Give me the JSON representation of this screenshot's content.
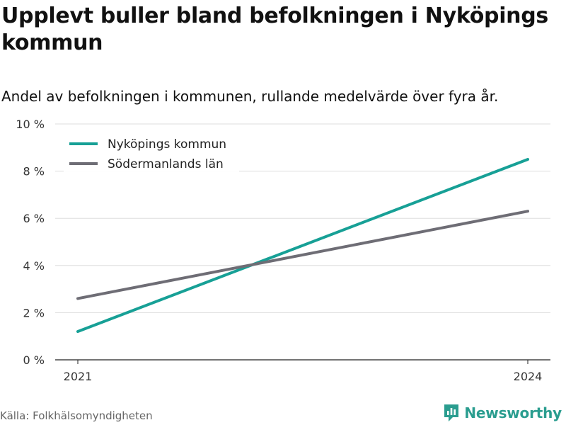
{
  "title": "Upplevt buller bland befolkningen i Nyköpings kommun",
  "subtitle": "Andel av befolkningen i kommunen, rullande medelvärde över fyra år.",
  "source": "Källa: Folkhälsomyndigheten",
  "brand": {
    "name": "Newsworthy",
    "icon": "newsworthy-logo-icon",
    "color": "#2a9d8f"
  },
  "chart_data": {
    "type": "line",
    "x": [
      "2021",
      "2024"
    ],
    "x_ticks": [
      "2021",
      "2024"
    ],
    "ylim": [
      0,
      10
    ],
    "y_ticks": [
      {
        "value": 0,
        "label": "0 %"
      },
      {
        "value": 2,
        "label": "2 %"
      },
      {
        "value": 4,
        "label": "4 %"
      },
      {
        "value": 6,
        "label": "6 %"
      },
      {
        "value": 8,
        "label": "8 %"
      },
      {
        "value": 10,
        "label": "10 %"
      }
    ],
    "grid": true,
    "legend_position": "top-left",
    "series": [
      {
        "name": "Nyköpings kommun",
        "values": [
          1.2,
          8.5
        ],
        "color": "#17a096"
      },
      {
        "name": "Södermanlands län",
        "values": [
          2.6,
          6.3
        ],
        "color": "#6e6d75"
      }
    ]
  }
}
